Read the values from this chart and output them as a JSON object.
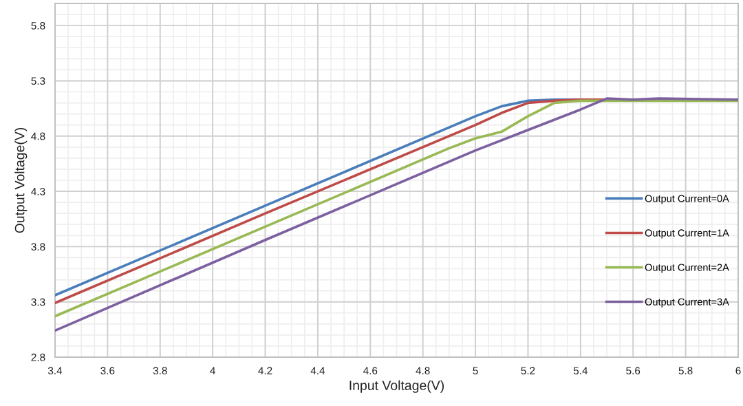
{
  "chart_data": {
    "type": "line",
    "xlabel": "Input Voltage(V)",
    "ylabel": "Output Voltage(V)",
    "xlim": [
      3.4,
      6
    ],
    "xticks": [
      3.4,
      3.6,
      3.8,
      4,
      4.2,
      4.4,
      4.6,
      4.8,
      5,
      5.2,
      5.4,
      5.6,
      5.8,
      6
    ],
    "ylim": [
      2.8,
      6.0
    ],
    "yticks": [
      2.8,
      3.3,
      3.8,
      4.3,
      4.8,
      5.3,
      5.8
    ],
    "grid": true,
    "legend": "right",
    "marker": "none",
    "line_style": "solid",
    "series": [
      {
        "name": "Output Current=0A",
        "color": "#4a7ebb",
        "x": [
          3.4,
          4.2,
          5.0,
          5.1,
          5.2,
          5.3,
          5.6,
          6.0
        ],
        "values": [
          3.36,
          4.17,
          4.98,
          5.07,
          5.12,
          5.13,
          5.13,
          5.13
        ]
      },
      {
        "name": "Output Current=1A",
        "color": "#be4b48",
        "x": [
          3.4,
          4.2,
          5.0,
          5.1,
          5.2,
          5.3,
          5.4,
          6.0
        ],
        "values": [
          3.29,
          4.1,
          4.9,
          5.01,
          5.1,
          5.12,
          5.13,
          5.13
        ]
      },
      {
        "name": "Output Current=2A",
        "color": "#98b954",
        "x": [
          3.4,
          4.2,
          4.9,
          5.0,
          5.05,
          5.1,
          5.2,
          5.3,
          5.4,
          6.0
        ],
        "values": [
          3.17,
          3.98,
          4.69,
          4.78,
          4.81,
          4.84,
          4.98,
          5.1,
          5.12,
          5.12
        ]
      },
      {
        "name": "Output Current=3A",
        "color": "#7d60a0",
        "x": [
          3.4,
          4.2,
          5.0,
          5.4,
          5.5,
          5.6,
          5.7,
          6.0
        ],
        "values": [
          3.04,
          3.86,
          4.67,
          5.04,
          5.14,
          5.13,
          5.14,
          5.13
        ]
      }
    ]
  }
}
